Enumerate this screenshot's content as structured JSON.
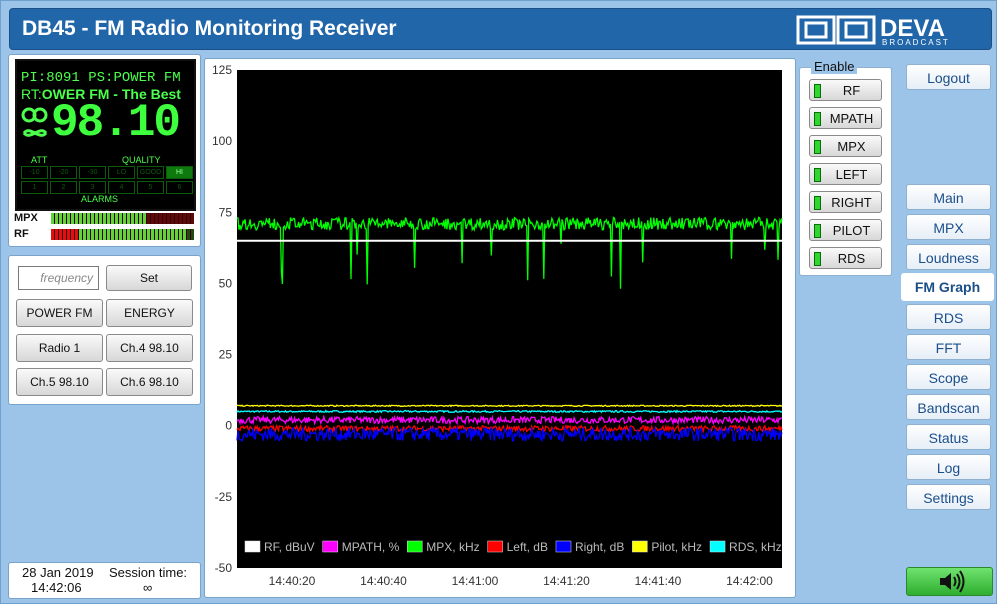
{
  "header": {
    "title": "DB45 - FM Radio Monitoring Receiver",
    "brand_main": "DEVA",
    "brand_sub": "BROADCAST"
  },
  "display": {
    "pi_label": "PI:",
    "pi_value": "8091",
    "ps_label": "PS:",
    "ps_value": "POWER FM",
    "rt_label": "RT:",
    "rt_value": "OWER FM - The Best",
    "frequency": "98.10",
    "att_label": "ATT",
    "quality_label": "QUALITY",
    "alarms_label": "ALARMS",
    "att_cells": [
      "-10",
      "-20",
      "-30"
    ],
    "quality_cells": [
      "LO",
      "GOOD",
      "HI"
    ],
    "alarm_cells": [
      "1",
      "2",
      "3",
      "4",
      "5",
      "6"
    ]
  },
  "meters": {
    "mpx_label": "MPX",
    "rf_label": "RF",
    "mpx_level": 0.64,
    "rf_level": 0.92
  },
  "controls": {
    "freq_placeholder": "frequency",
    "set_label": "Set",
    "presets": [
      "POWER FM",
      "ENERGY",
      "Radio 1",
      "Ch.4 98.10",
      "Ch.5 98.10",
      "Ch.6 98.10"
    ]
  },
  "session": {
    "date": "28 Jan 2019",
    "time": "14:42:06",
    "session_label": "Session time:",
    "session_value": "∞"
  },
  "enable": {
    "title": "Enable",
    "items": [
      "RF",
      "MPATH",
      "MPX",
      "LEFT",
      "RIGHT",
      "PILOT",
      "RDS"
    ]
  },
  "nav": {
    "logout": "Logout",
    "items": [
      "Main",
      "MPX",
      "Loudness",
      "FM Graph",
      "RDS",
      "FFT",
      "Scope",
      "Bandscan",
      "Status",
      "Log",
      "Settings"
    ],
    "active": "FM Graph"
  },
  "chart_data": {
    "type": "line",
    "ylim": [
      -50,
      125
    ],
    "yticks": [
      125,
      100,
      75,
      50,
      25,
      0,
      -25,
      -50
    ],
    "xticks": [
      "14:40:20",
      "14:40:40",
      "14:41:00",
      "14:41:20",
      "14:41:40",
      "14:42:00"
    ],
    "series": [
      {
        "name": "RF, dBuV",
        "color": "#ffffff",
        "level": 65
      },
      {
        "name": "MPATH, %",
        "color": "#ff00ff",
        "level": 2
      },
      {
        "name": "MPX, kHz",
        "color": "#00ff00",
        "level": 71
      },
      {
        "name": "Left, dB",
        "color": "#ff0000",
        "level": -1
      },
      {
        "name": "Right, dB",
        "color": "#0000ff",
        "level": -3
      },
      {
        "name": "Pilot, kHz",
        "color": "#ffff00",
        "level": 7
      },
      {
        "name": "RDS, kHz",
        "color": "#00ffff",
        "level": 5
      }
    ]
  }
}
